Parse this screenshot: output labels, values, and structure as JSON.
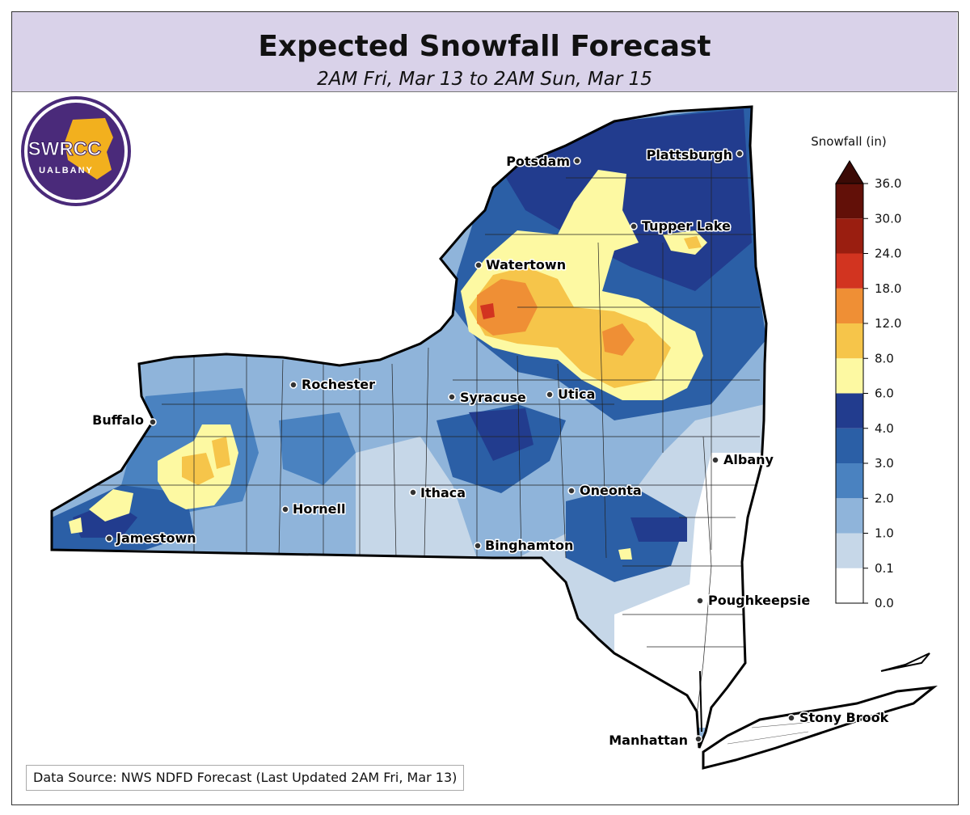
{
  "header": {
    "title": "Expected Snowfall Forecast",
    "subtitle": "2AM Fri, Mar 13 to 2AM Sun, Mar 15"
  },
  "logo": {
    "name": "SWRCC",
    "org": "UALBANY",
    "colors": {
      "ring": "#4a2a7a",
      "gold": "#f2b01e"
    }
  },
  "colorbar": {
    "title": "Snowfall (in)",
    "levels": [
      "0.0",
      "0.1",
      "1.0",
      "2.0",
      "3.0",
      "4.0",
      "6.0",
      "8.0",
      "12.0",
      "18.0",
      "24.0",
      "30.0",
      "36.0"
    ],
    "colors": [
      "#ffffff",
      "#c6d7e8",
      "#8fb4da",
      "#4a82c0",
      "#2b5fa6",
      "#223c8e",
      "#fdf9a2",
      "#f6c54a",
      "#ef8f35",
      "#d23420",
      "#9a1e10",
      "#621008"
    ],
    "overflow_color": "#3b0a05"
  },
  "cities": [
    {
      "name": "Potsdam"
    },
    {
      "name": "Plattsburgh"
    },
    {
      "name": "Tupper Lake"
    },
    {
      "name": "Watertown"
    },
    {
      "name": "Rochester"
    },
    {
      "name": "Syracuse"
    },
    {
      "name": "Utica"
    },
    {
      "name": "Buffalo"
    },
    {
      "name": "Albany"
    },
    {
      "name": "Ithaca"
    },
    {
      "name": "Oneonta"
    },
    {
      "name": "Hornell"
    },
    {
      "name": "Jamestown"
    },
    {
      "name": "Binghamton"
    },
    {
      "name": "Poughkeepsie"
    },
    {
      "name": "Stony Brook"
    },
    {
      "name": "Manhattan"
    }
  ],
  "footer": {
    "source": "Data Source: NWS NDFD Forecast (Last Updated 2AM Fri, Mar 13)"
  }
}
